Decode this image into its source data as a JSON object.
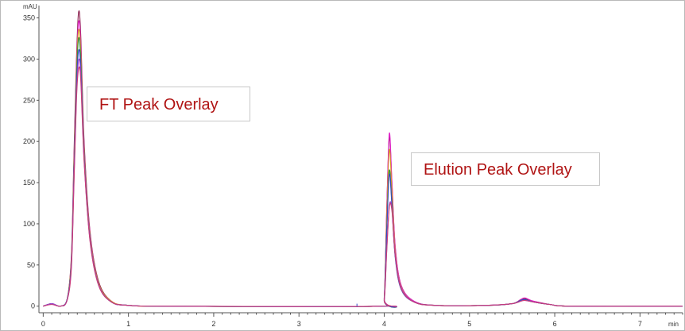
{
  "annotations": {
    "ft_label": "FT Peak Overlay",
    "elution_label": "Elution Peak Overlay"
  },
  "chart_data": {
    "type": "line",
    "title": "",
    "xlabel": "",
    "ylabel": "",
    "y_unit": "mAU",
    "x_unit": "min",
    "xlim": [
      -0.05,
      7.5
    ],
    "ylim": [
      -8,
      365
    ],
    "x_ticks": [
      0,
      1,
      2,
      3,
      4,
      5,
      6,
      7
    ],
    "y_ticks": [
      0,
      50,
      100,
      150,
      200,
      250,
      300,
      350
    ],
    "grid": false,
    "legend": "none",
    "series": [
      {
        "color": "#8a1f4d",
        "points": [
          [
            0,
            0
          ],
          [
            0.1,
            3
          ],
          [
            0.2,
            0
          ],
          [
            0.28,
            8
          ],
          [
            0.33,
            60
          ],
          [
            0.36,
            180
          ],
          [
            0.39,
            300
          ],
          [
            0.415,
            357
          ],
          [
            0.44,
            330
          ],
          [
            0.48,
            200
          ],
          [
            0.55,
            90
          ],
          [
            0.65,
            30
          ],
          [
            0.8,
            6
          ],
          [
            1.0,
            1
          ],
          [
            1.5,
            0
          ],
          [
            3.95,
            0
          ],
          [
            4.0,
            10
          ],
          [
            4.03,
            120
          ],
          [
            4.06,
            205
          ],
          [
            4.09,
            150
          ],
          [
            4.13,
            70
          ],
          [
            4.2,
            25
          ],
          [
            4.35,
            6
          ],
          [
            4.6,
            1
          ],
          [
            5.2,
            1
          ],
          [
            5.5,
            3
          ],
          [
            5.6,
            8
          ],
          [
            5.65,
            9
          ],
          [
            5.75,
            6
          ],
          [
            5.95,
            2
          ],
          [
            6.2,
            0
          ],
          [
            7.5,
            0
          ]
        ]
      },
      {
        "color": "#e020c8",
        "points": [
          [
            0,
            0
          ],
          [
            0.1,
            3
          ],
          [
            0.2,
            0
          ],
          [
            0.28,
            8
          ],
          [
            0.33,
            55
          ],
          [
            0.36,
            170
          ],
          [
            0.39,
            290
          ],
          [
            0.415,
            345
          ],
          [
            0.44,
            320
          ],
          [
            0.48,
            195
          ],
          [
            0.55,
            88
          ],
          [
            0.65,
            28
          ],
          [
            0.8,
            6
          ],
          [
            1.0,
            1
          ],
          [
            1.5,
            0
          ],
          [
            3.95,
            0
          ],
          [
            4.0,
            10
          ],
          [
            4.03,
            120
          ],
          [
            4.06,
            210
          ],
          [
            4.09,
            152
          ],
          [
            4.13,
            72
          ],
          [
            4.2,
            25
          ],
          [
            4.35,
            6
          ],
          [
            4.6,
            1
          ],
          [
            5.2,
            1
          ],
          [
            5.5,
            3
          ],
          [
            5.6,
            8
          ],
          [
            5.65,
            10
          ],
          [
            5.75,
            6
          ],
          [
            5.95,
            2
          ],
          [
            6.2,
            0
          ],
          [
            7.5,
            0
          ]
        ]
      },
      {
        "color": "#d89a22",
        "points": [
          [
            0,
            0
          ],
          [
            0.1,
            3
          ],
          [
            0.2,
            0
          ],
          [
            0.28,
            8
          ],
          [
            0.33,
            55
          ],
          [
            0.36,
            165
          ],
          [
            0.39,
            285
          ],
          [
            0.415,
            335
          ],
          [
            0.44,
            310
          ],
          [
            0.48,
            190
          ],
          [
            0.55,
            85
          ],
          [
            0.65,
            28
          ],
          [
            0.8,
            6
          ],
          [
            1.0,
            1
          ],
          [
            1.5,
            0
          ],
          [
            3.95,
            0
          ],
          [
            4.0,
            9
          ],
          [
            4.03,
            110
          ],
          [
            4.06,
            190
          ],
          [
            4.09,
            140
          ],
          [
            4.13,
            66
          ],
          [
            4.2,
            23
          ],
          [
            4.35,
            5
          ],
          [
            4.6,
            1
          ],
          [
            5.2,
            1
          ],
          [
            5.5,
            3
          ],
          [
            5.6,
            7
          ],
          [
            5.65,
            8
          ],
          [
            5.75,
            5
          ],
          [
            5.95,
            2
          ],
          [
            6.2,
            0
          ],
          [
            7.5,
            0
          ]
        ]
      },
      {
        "color": "#2f8a3a",
        "points": [
          [
            0,
            0
          ],
          [
            0.1,
            3
          ],
          [
            0.2,
            0
          ],
          [
            0.28,
            8
          ],
          [
            0.33,
            52
          ],
          [
            0.36,
            160
          ],
          [
            0.39,
            275
          ],
          [
            0.415,
            325
          ],
          [
            0.44,
            300
          ],
          [
            0.48,
            185
          ],
          [
            0.55,
            82
          ],
          [
            0.65,
            26
          ],
          [
            0.8,
            5
          ],
          [
            1.0,
            1
          ],
          [
            1.5,
            0
          ],
          [
            3.95,
            0
          ],
          [
            4.0,
            8
          ],
          [
            4.03,
            95
          ],
          [
            4.06,
            165
          ],
          [
            4.09,
            125
          ],
          [
            4.13,
            60
          ],
          [
            4.2,
            21
          ],
          [
            4.35,
            5
          ],
          [
            4.6,
            1
          ],
          [
            5.2,
            1
          ],
          [
            5.5,
            3
          ],
          [
            5.6,
            7
          ],
          [
            5.65,
            8
          ],
          [
            5.75,
            5
          ],
          [
            5.95,
            2
          ],
          [
            6.2,
            0
          ],
          [
            7.5,
            0
          ]
        ]
      },
      {
        "color": "#3448c8",
        "points": [
          [
            0,
            0
          ],
          [
            0.1,
            3
          ],
          [
            0.2,
            0
          ],
          [
            0.28,
            8
          ],
          [
            0.33,
            50
          ],
          [
            0.36,
            155
          ],
          [
            0.39,
            265
          ],
          [
            0.415,
            310
          ],
          [
            0.44,
            290
          ],
          [
            0.48,
            180
          ],
          [
            0.55,
            80
          ],
          [
            0.65,
            26
          ],
          [
            0.8,
            5
          ],
          [
            1.0,
            1
          ],
          [
            1.5,
            0
          ],
          [
            3.95,
            0
          ],
          [
            4.0,
            8
          ],
          [
            4.03,
            92
          ],
          [
            4.06,
            160
          ],
          [
            4.09,
            122
          ],
          [
            4.13,
            58
          ],
          [
            4.2,
            20
          ],
          [
            4.35,
            5
          ],
          [
            4.6,
            1
          ],
          [
            5.2,
            1
          ],
          [
            5.5,
            3
          ],
          [
            5.6,
            7
          ],
          [
            5.65,
            8
          ],
          [
            5.75,
            5
          ],
          [
            5.95,
            2
          ],
          [
            6.2,
            0
          ],
          [
            7.5,
            0
          ]
        ]
      },
      {
        "color": "#a040d0",
        "points": [
          [
            0,
            0
          ],
          [
            0.1,
            3
          ],
          [
            0.2,
            0
          ],
          [
            0.28,
            7
          ],
          [
            0.33,
            48
          ],
          [
            0.36,
            150
          ],
          [
            0.39,
            255
          ],
          [
            0.415,
            298
          ],
          [
            0.44,
            282
          ],
          [
            0.48,
            178
          ],
          [
            0.55,
            80
          ],
          [
            0.65,
            26
          ],
          [
            0.8,
            5
          ],
          [
            1.0,
            1
          ],
          [
            1.5,
            0
          ],
          [
            3.95,
            0
          ],
          [
            4.0,
            7
          ],
          [
            4.03,
            70
          ],
          [
            4.06,
            122
          ],
          [
            4.09,
            118
          ],
          [
            4.13,
            62
          ],
          [
            4.2,
            22
          ],
          [
            4.35,
            5
          ],
          [
            4.6,
            1
          ],
          [
            5.2,
            1
          ],
          [
            5.5,
            3
          ],
          [
            5.6,
            6
          ],
          [
            5.65,
            7
          ],
          [
            5.75,
            5
          ],
          [
            5.95,
            2
          ],
          [
            6.2,
            0
          ],
          [
            7.5,
            0
          ]
        ]
      },
      {
        "color": "#c83c78",
        "points": [
          [
            0,
            0
          ],
          [
            0.1,
            2
          ],
          [
            0.2,
            0
          ],
          [
            0.28,
            7
          ],
          [
            0.33,
            45
          ],
          [
            0.36,
            145
          ],
          [
            0.39,
            250
          ],
          [
            0.415,
            288
          ],
          [
            0.44,
            275
          ],
          [
            0.48,
            175
          ],
          [
            0.55,
            78
          ],
          [
            0.65,
            25
          ],
          [
            0.8,
            5
          ],
          [
            1.0,
            1
          ],
          [
            1.5,
            0
          ],
          [
            3.95,
            0
          ],
          [
            4.0,
            7
          ],
          [
            4.03,
            68
          ],
          [
            4.06,
            120
          ],
          [
            4.09,
            116
          ],
          [
            4.13,
            60
          ],
          [
            4.2,
            21
          ],
          [
            4.35,
            5
          ],
          [
            4.6,
            1
          ],
          [
            5.2,
            1
          ],
          [
            5.5,
            3
          ],
          [
            5.6,
            6
          ],
          [
            5.65,
            7
          ],
          [
            5.75,
            5
          ],
          [
            5.95,
            2
          ],
          [
            6.2,
            0
          ],
          [
            7.5,
            0
          ]
        ]
      }
    ]
  }
}
